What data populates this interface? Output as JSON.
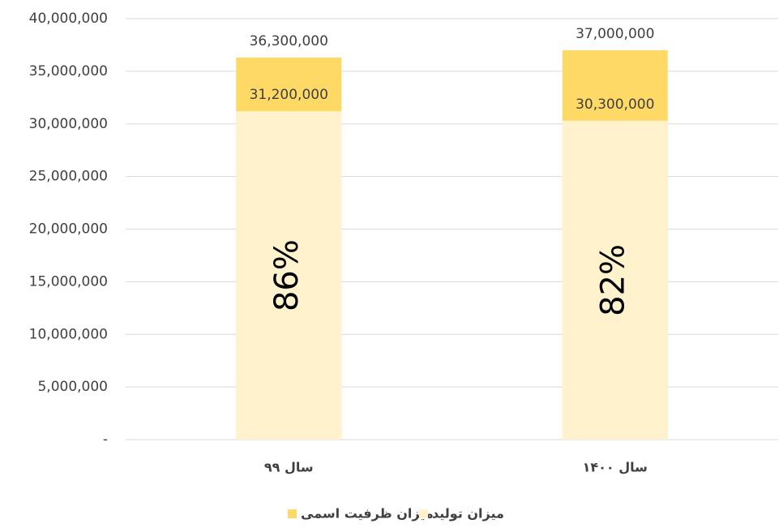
{
  "chart_data": {
    "type": "bar",
    "categories": [
      "سال ۹۹",
      "سال ۱۴۰۰"
    ],
    "series": [
      {
        "name": "میزان ظرفیت اسمی",
        "color": "#FFD966",
        "values": [
          36300000,
          37000000
        ],
        "value_labels": [
          "36,300,000",
          "37,000,000"
        ]
      },
      {
        "name": "میزان تولید",
        "color": "#FFF2CC",
        "values": [
          31200000,
          30300000
        ],
        "value_labels": [
          "31,200,000",
          "30,300,000"
        ]
      }
    ],
    "ratio_labels": [
      "86%",
      "82%"
    ],
    "ylim": [
      0,
      40000000
    ],
    "yticks": [
      {
        "value": 0,
        "label": "-"
      },
      {
        "value": 5000000,
        "label": "5,000,000"
      },
      {
        "value": 10000000,
        "label": "10,000,000"
      },
      {
        "value": 15000000,
        "label": "15,000,000"
      },
      {
        "value": 20000000,
        "label": "20,000,000"
      },
      {
        "value": 25000000,
        "label": "25,000,000"
      },
      {
        "value": 30000000,
        "label": "30,000,000"
      },
      {
        "value": 35000000,
        "label": "35,000,000"
      },
      {
        "value": 40000000,
        "label": "40,000,000"
      }
    ],
    "grid": true,
    "legend": "bottom"
  }
}
